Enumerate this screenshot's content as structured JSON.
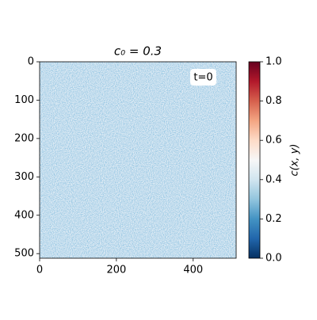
{
  "chart_data": {
    "type": "heatmap",
    "title": "c₀ = 0.3",
    "annotation": "t=0",
    "xlim": [
      0,
      512
    ],
    "ylim": [
      512,
      0
    ],
    "xticks": [
      0,
      200,
      400
    ],
    "yticks": [
      0,
      100,
      200,
      300,
      400,
      500
    ],
    "colorbar": {
      "label": "c(x, y)",
      "lim": [
        0,
        1
      ],
      "ticks": [
        {
          "value": 0,
          "label": "0.0"
        },
        {
          "value": 0.2,
          "label": "0.2"
        },
        {
          "value": 0.4,
          "label": "0.4"
        },
        {
          "value": 0.6,
          "label": "0.6"
        },
        {
          "value": 0.8,
          "label": "0.8"
        },
        {
          "value": 1,
          "label": "1.0"
        }
      ],
      "colors": [
        "#053061",
        "#2166ac",
        "#4393c3",
        "#92c5de",
        "#d1e5f0",
        "#f7f7f7",
        "#fddbc7",
        "#f4a582",
        "#d6604d",
        "#b2182b",
        "#67001f"
      ]
    }
  }
}
